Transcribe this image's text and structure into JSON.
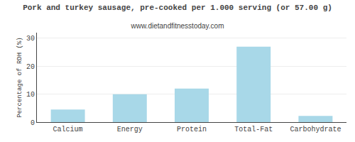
{
  "chart_data": {
    "type": "bar",
    "title": "Pork and turkey sausage, pre-cooked per 1.000 serving (or 57.00 g)",
    "subtitle": "www.dietandfitnesstoday.com",
    "categories": [
      "Calcium",
      "Energy",
      "Protein",
      "Total-Fat",
      "Carbohydrate"
    ],
    "values": [
      4.5,
      10.0,
      12.0,
      27.0,
      2.2
    ],
    "color": "#a8d8e8",
    "ylabel": "Percentage of RDH (%)",
    "ylim": [
      0,
      32
    ],
    "yticks": [
      0,
      10,
      20,
      30
    ],
    "grid": true
  }
}
